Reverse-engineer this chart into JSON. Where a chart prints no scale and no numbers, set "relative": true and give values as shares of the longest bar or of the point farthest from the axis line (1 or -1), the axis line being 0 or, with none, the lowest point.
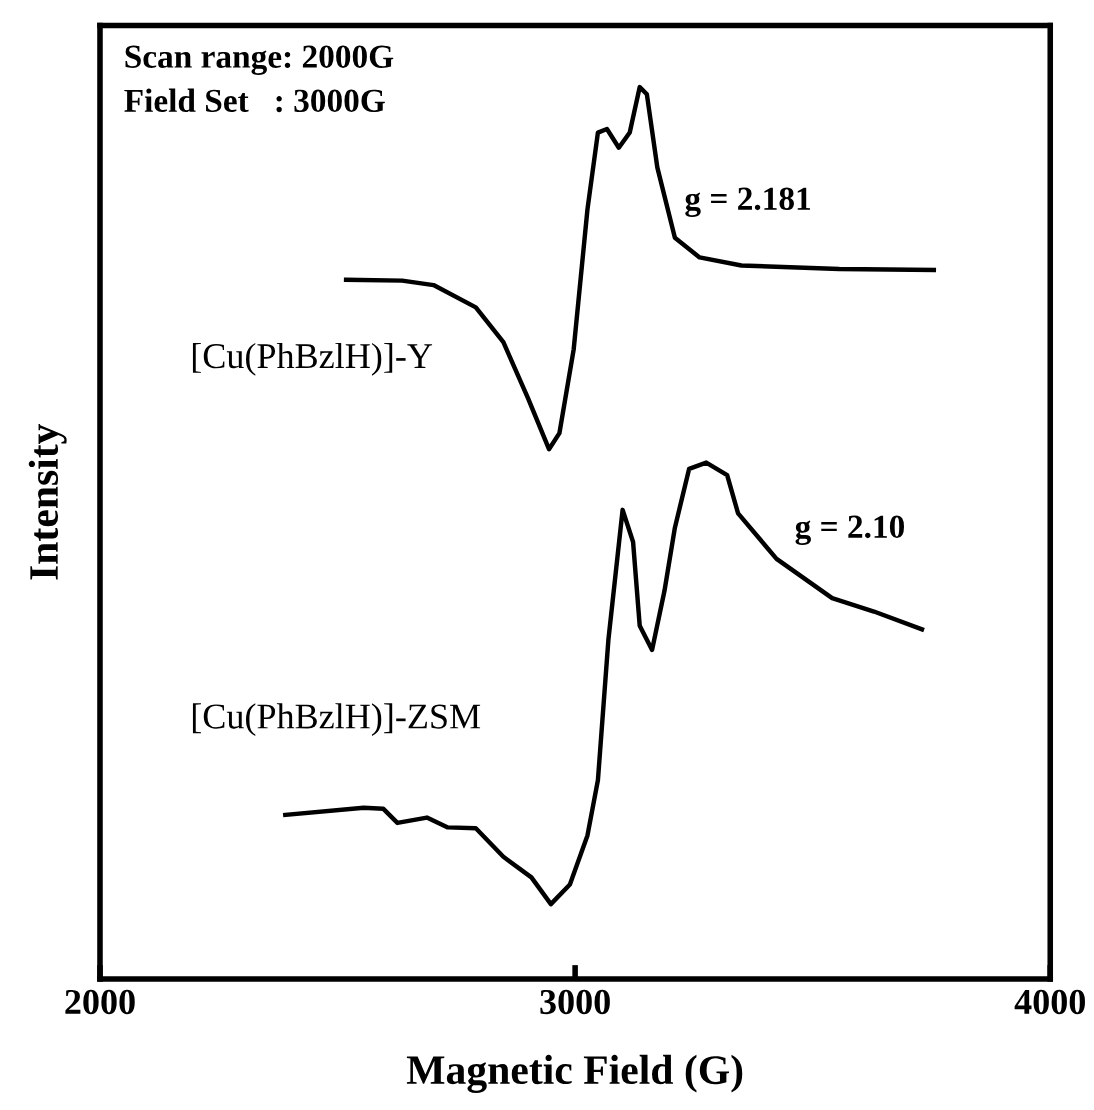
{
  "chart_data": {
    "type": "line",
    "relative": true,
    "xlabel": "Magnetic Field (G)",
    "ylabel": "Intensity",
    "xlim": [
      2000,
      4000
    ],
    "xticks": [
      2000,
      3000,
      4000
    ],
    "grid": false,
    "legend": false,
    "marker": "none",
    "line_style": "solid",
    "series": [
      {
        "name": "[Cu(PhBzlH)]-Y",
        "color": "#000000",
        "x": [
          2518,
          2636,
          2702,
          2791,
          2849,
          2901,
          2945,
          2967,
          2997,
          3026,
          3048,
          3067,
          3092,
          3115,
          3136,
          3151,
          3173,
          3210,
          3262,
          3350,
          3556,
          3755
        ],
        "values": [
          0.784,
          0.783,
          0.778,
          0.753,
          0.714,
          0.651,
          0.594,
          0.612,
          0.706,
          0.863,
          0.949,
          0.953,
          0.932,
          0.949,
          1.0,
          0.992,
          0.91,
          0.831,
          0.809,
          0.8,
          0.796,
          0.795
        ]
      },
      {
        "name": "[Cu(PhBzlH)]-ZSM",
        "color": "#000000",
        "x": [
          2390,
          2555,
          2596,
          2626,
          2688,
          2732,
          2791,
          2849,
          2908,
          2949,
          2989,
          3026,
          3048,
          3070,
          3100,
          3122,
          3136,
          3162,
          3188,
          3210,
          3240,
          3276,
          3320,
          3343,
          3424,
          3541,
          3629,
          3730
        ],
        "values": [
          0.184,
          0.192,
          0.191,
          0.175,
          0.181,
          0.17,
          0.169,
          0.137,
          0.114,
          0.084,
          0.106,
          0.161,
          0.223,
          0.38,
          0.526,
          0.49,
          0.396,
          0.369,
          0.435,
          0.506,
          0.572,
          0.579,
          0.565,
          0.522,
          0.471,
          0.427,
          0.412,
          0.392
        ]
      }
    ],
    "annotations": [
      "Scan range: 2000G",
      "Field Set   : 3000G",
      "g = 2.181",
      "g = 2.10"
    ]
  }
}
